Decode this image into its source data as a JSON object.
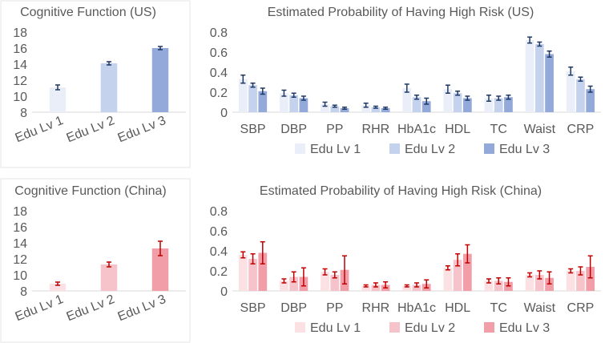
{
  "colors": {
    "us": [
      "#e9eef8",
      "#c4d2ed",
      "#93a9da"
    ],
    "china": [
      "#fbe0e4",
      "#f7c3ca",
      "#f19ea9"
    ],
    "us_err": "#1f3864",
    "china_err": "#c00000",
    "axis": "#d9d9d9",
    "text": "#595959"
  },
  "chart_data": [
    {
      "id": "us_cog",
      "type": "bar",
      "title": "Cognitive Function (US)",
      "categories": [
        "Edu Lv 1",
        "Edu Lv 2",
        "Edu Lv 3"
      ],
      "values": [
        11.1,
        14.1,
        16.0
      ],
      "errors": [
        0.3,
        0.2,
        0.2
      ],
      "ylim": [
        8,
        18
      ],
      "yticks": [
        "8",
        "10",
        "12",
        "14",
        "16",
        "18"
      ],
      "palette": "us"
    },
    {
      "id": "us_risk",
      "type": "bar",
      "title": "Estimated Probability of Having High Risk (US)",
      "categories": [
        "SBP",
        "DBP",
        "PP",
        "RHR",
        "HbA1c",
        "HDL",
        "TC",
        "Waist",
        "CRP"
      ],
      "series": [
        {
          "name": "Edu Lv 1",
          "values": [
            0.33,
            0.19,
            0.08,
            0.07,
            0.24,
            0.23,
            0.14,
            0.72,
            0.41
          ],
          "errors": [
            0.04,
            0.03,
            0.02,
            0.02,
            0.04,
            0.04,
            0.03,
            0.03,
            0.04
          ]
        },
        {
          "name": "Edu Lv 2",
          "values": [
            0.27,
            0.17,
            0.06,
            0.05,
            0.15,
            0.19,
            0.14,
            0.68,
            0.33
          ],
          "errors": [
            0.02,
            0.02,
            0.01,
            0.01,
            0.02,
            0.02,
            0.02,
            0.02,
            0.02
          ]
        },
        {
          "name": "Edu Lv 3",
          "values": [
            0.21,
            0.14,
            0.04,
            0.04,
            0.11,
            0.14,
            0.15,
            0.58,
            0.23
          ],
          "errors": [
            0.03,
            0.02,
            0.01,
            0.01,
            0.03,
            0.02,
            0.02,
            0.03,
            0.03
          ]
        }
      ],
      "ylim": [
        0,
        0.8
      ],
      "yticks": [
        "0",
        "0.2",
        "0.4",
        "0.6",
        "0.8"
      ],
      "palette": "us"
    },
    {
      "id": "cn_cog",
      "type": "bar",
      "title": "Cognitive Function (China)",
      "categories": [
        "Edu Lv 1",
        "Edu Lv 2",
        "Edu Lv 3"
      ],
      "values": [
        8.9,
        11.3,
        13.3
      ],
      "errors": [
        0.2,
        0.3,
        0.9
      ],
      "ylim": [
        8,
        18
      ],
      "yticks": [
        "8",
        "10",
        "12",
        "14",
        "16",
        "18"
      ],
      "palette": "china"
    },
    {
      "id": "cn_risk",
      "type": "bar",
      "title": "Estimated Probability of Having High Risk (China)",
      "categories": [
        "SBP",
        "DBP",
        "PP",
        "RHR",
        "HbA1c",
        "HDL",
        "TC",
        "Waist",
        "CRP"
      ],
      "series": [
        {
          "name": "Edu Lv 1",
          "values": [
            0.36,
            0.1,
            0.19,
            0.05,
            0.05,
            0.23,
            0.1,
            0.16,
            0.2
          ],
          "errors": [
            0.03,
            0.02,
            0.03,
            0.01,
            0.01,
            0.02,
            0.02,
            0.02,
            0.02
          ]
        },
        {
          "name": "Edu Lv 2",
          "values": [
            0.32,
            0.14,
            0.16,
            0.06,
            0.06,
            0.31,
            0.1,
            0.16,
            0.2
          ],
          "errors": [
            0.05,
            0.05,
            0.03,
            0.02,
            0.02,
            0.06,
            0.03,
            0.04,
            0.04
          ]
        },
        {
          "name": "Edu Lv 3",
          "values": [
            0.38,
            0.14,
            0.21,
            0.06,
            0.07,
            0.37,
            0.09,
            0.13,
            0.24
          ],
          "errors": [
            0.11,
            0.09,
            0.14,
            0.03,
            0.04,
            0.09,
            0.04,
            0.06,
            0.11
          ]
        }
      ],
      "ylim": [
        0,
        0.8
      ],
      "yticks": [
        "0",
        "0.2",
        "0.4",
        "0.6",
        "0.8"
      ],
      "palette": "china"
    }
  ]
}
